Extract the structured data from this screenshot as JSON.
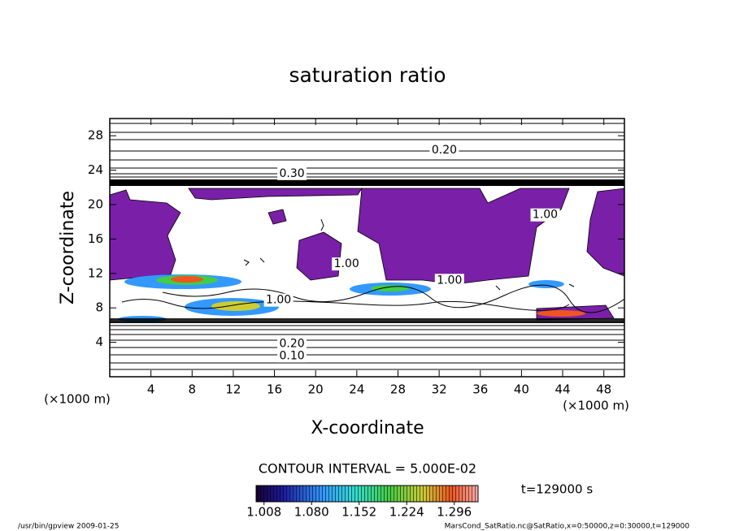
{
  "chart_data": {
    "type": "contour",
    "title": "saturation ratio",
    "xlabel": "X-coordinate",
    "ylabel": "Z-coordinate",
    "xunit": "(×1000 m)",
    "xlim": [
      0,
      50
    ],
    "ylim": [
      0,
      30
    ],
    "xticks": [
      4,
      8,
      12,
      16,
      20,
      24,
      28,
      32,
      36,
      40,
      44,
      48
    ],
    "yticks": [
      4,
      8,
      12,
      16,
      20,
      24,
      28
    ],
    "contour_labels": [
      {
        "label": "0.20",
        "x": 32.5,
        "y": 26.3
      },
      {
        "label": "0.30",
        "x": 17.7,
        "y": 23.6
      },
      {
        "label": "0.10",
        "x": 17.7,
        "y": 2.4
      },
      {
        "label": "0.20",
        "x": 17.7,
        "y": 3.8
      },
      {
        "label": "1.00",
        "x": 23.0,
        "y": 13.1
      },
      {
        "label": "1.00",
        "x": 42.3,
        "y": 18.8
      },
      {
        "label": "1.00",
        "x": 33.0,
        "y": 11.2
      },
      {
        "label": "1.00",
        "x": 16.4,
        "y": 8.9
      }
    ],
    "contour_interval": "CONTOUR INTERVAL = 5.000E-02",
    "colorbar": {
      "lim": [
        0.996,
        1.332
      ],
      "ticks": [
        1.008,
        {
          "value": 1.08,
          "label": "1.080"
        },
        1.152,
        1.224,
        1.296
      ]
    },
    "time_label": "t=129000 s",
    "footer_left": "/usr/bin/gpview  2009-01-25",
    "footer_right": "MarsCond_SatRatio.nc@SatRatio,x=0:50000,z=0:30000,t=129000"
  }
}
